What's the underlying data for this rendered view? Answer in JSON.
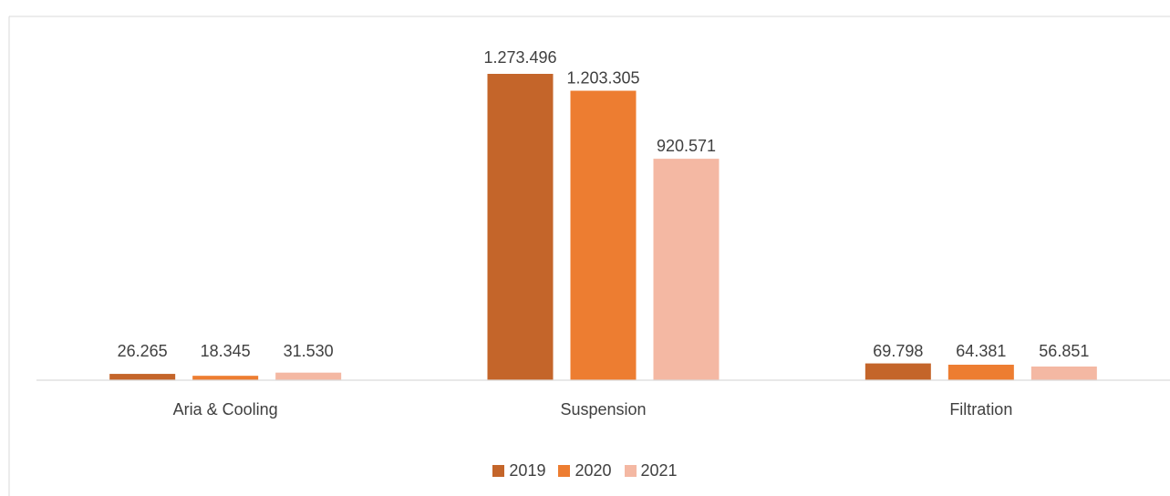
{
  "chart_data": {
    "type": "bar",
    "categories": [
      "Aria & Cooling",
      "Suspension",
      "Filtration"
    ],
    "series": [
      {
        "name": "2019",
        "values": [
          26265,
          1273496,
          69798
        ],
        "labels": [
          "26.265",
          "1.273.496",
          "69.798"
        ],
        "color": "#c4652a"
      },
      {
        "name": "2020",
        "values": [
          18345,
          1203305,
          64381
        ],
        "labels": [
          "18.345",
          "1.203.305",
          "64.381"
        ],
        "color": "#ed7d31"
      },
      {
        "name": "2021",
        "values": [
          31530,
          920571,
          56851
        ],
        "labels": [
          "31.530",
          "920.571",
          "56.851"
        ],
        "color": "#f4b8a3"
      }
    ],
    "ylim": [
      0,
      1273496
    ],
    "grid": false,
    "legend_position": "bottom"
  }
}
